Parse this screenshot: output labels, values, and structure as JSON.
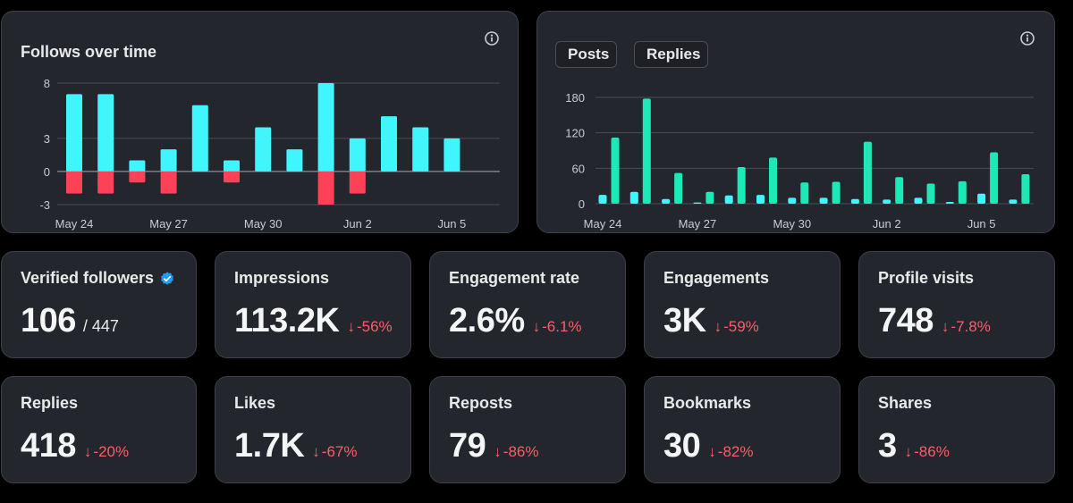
{
  "follows_chart": {
    "title": "Follows over time",
    "info_icon": "info-icon"
  },
  "engagement_chart": {
    "legend": [
      "Posts",
      "Replies"
    ],
    "info_icon": "info-icon"
  },
  "stats": [
    {
      "label": "Verified followers",
      "value": "106",
      "total": "/ 447",
      "verified_icon": "verified-badge-icon"
    },
    {
      "label": "Impressions",
      "value": "113.2K",
      "change": "-56%"
    },
    {
      "label": "Engagement rate",
      "value": "2.6%",
      "change": "-6.1%"
    },
    {
      "label": "Engagements",
      "value": "3K",
      "change": "-59%"
    },
    {
      "label": "Profile visits",
      "value": "748",
      "change": "-7.8%"
    },
    {
      "label": "Replies",
      "value": "418",
      "change": "-20%"
    },
    {
      "label": "Likes",
      "value": "1.7K",
      "change": "-67%"
    },
    {
      "label": "Reposts",
      "value": "79",
      "change": "-86%"
    },
    {
      "label": "Bookmarks",
      "value": "30",
      "change": "-82%"
    },
    {
      "label": "Shares",
      "value": "3",
      "change": "-86%"
    }
  ],
  "colors": {
    "background": "#000000",
    "card": "#24262d",
    "posts": "#3ff6ff",
    "replies": "#1de9b6",
    "gained": "#3ff6ff",
    "lost": "#ff4158",
    "negative_change": "#f4606c"
  },
  "chart_data": [
    {
      "type": "bar",
      "title": "Follows over time",
      "categories": [
        "May 24",
        "May 25",
        "May 26",
        "May 27",
        "May 28",
        "May 29",
        "May 30",
        "May 31",
        "Jun 1",
        "Jun 2",
        "Jun 3",
        "Jun 4",
        "Jun 5"
      ],
      "x_tick_labels": [
        "May 24",
        "May 27",
        "May 30",
        "Jun 2",
        "Jun 5"
      ],
      "y_tick_labels": [
        "8",
        "3",
        "0",
        "-3"
      ],
      "ylim": [
        -3,
        8
      ],
      "grid": true,
      "series": [
        {
          "values": [
            7,
            7,
            1,
            2,
            6,
            1,
            4,
            2,
            8,
            3,
            5,
            4,
            3
          ]
        },
        {
          "values": [
            -2,
            -2,
            -1,
            -2,
            0,
            -1,
            0,
            0,
            -3,
            -2,
            0,
            0,
            0
          ]
        }
      ]
    },
    {
      "type": "bar",
      "categories": [
        "May 24",
        "May 25",
        "May 26",
        "May 27",
        "May 28",
        "May 29",
        "May 30",
        "May 31",
        "Jun 1",
        "Jun 2",
        "Jun 3",
        "Jun 4",
        "Jun 5",
        "Jun 6"
      ],
      "x_tick_labels": [
        "May 24",
        "May 27",
        "May 30",
        "Jun 2",
        "Jun 5"
      ],
      "y_tick_labels": [
        "180",
        "120",
        "60",
        "0"
      ],
      "ylim": [
        0,
        185
      ],
      "grid": true,
      "legend_position": "top-left",
      "series": [
        {
          "name": "Posts",
          "values": [
            15,
            20,
            8,
            2,
            14,
            15,
            10,
            10,
            8,
            7,
            10,
            3,
            17,
            7
          ]
        },
        {
          "name": "Replies",
          "values": [
            112,
            178,
            52,
            20,
            62,
            78,
            36,
            37,
            105,
            45,
            34,
            38,
            87,
            50
          ]
        }
      ]
    }
  ]
}
